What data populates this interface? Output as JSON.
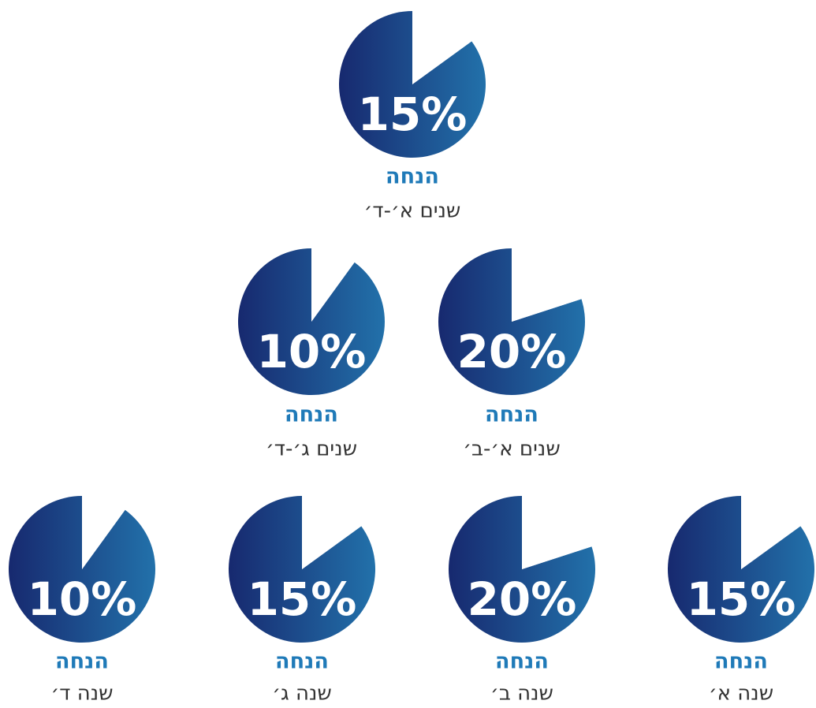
{
  "chart_data": [
    {
      "type": "pie",
      "title": "הנחה",
      "subtitle": "שנים א׳-ד׳",
      "values": [
        15
      ],
      "value_labels": [
        "15%"
      ]
    },
    {
      "type": "pie",
      "title": "הנחה",
      "subtitle": "שנים ג׳-ד׳",
      "values": [
        10
      ],
      "value_labels": [
        "10%"
      ]
    },
    {
      "type": "pie",
      "title": "הנחה",
      "subtitle": "שנים א׳-ב׳",
      "values": [
        20
      ],
      "value_labels": [
        "20%"
      ]
    },
    {
      "type": "pie",
      "title": "הנחה",
      "subtitle": "שנה ד׳",
      "values": [
        10
      ],
      "value_labels": [
        "10%"
      ]
    },
    {
      "type": "pie",
      "title": "הנחה",
      "subtitle": "שנה ג׳",
      "values": [
        15
      ],
      "value_labels": [
        "15%"
      ]
    },
    {
      "type": "pie",
      "title": "הנחה",
      "subtitle": "שנה ב׳",
      "values": [
        20
      ],
      "value_labels": [
        "20%"
      ]
    },
    {
      "type": "pie",
      "title": "הנחה",
      "subtitle": "שנה א׳",
      "values": [
        15
      ],
      "value_labels": [
        "15%"
      ]
    }
  ]
}
